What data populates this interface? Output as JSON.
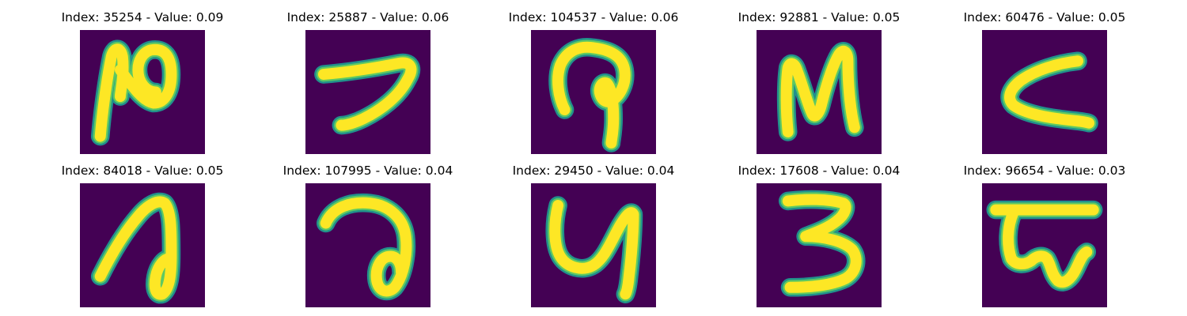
{
  "colors": {
    "background": "#440154",
    "stroke_outer": "#21918c",
    "stroke_mid": "#5ec962",
    "stroke_core": "#fde725"
  },
  "panels": [
    {
      "title": "Index: 35254 - Value: 0.09"
    },
    {
      "title": "Index: 25887 - Value: 0.06"
    },
    {
      "title": "Index: 104537 - Value: 0.06"
    },
    {
      "title": "Index: 92881 - Value: 0.05"
    },
    {
      "title": "Index: 60476 - Value: 0.05"
    },
    {
      "title": "Index: 84018 - Value: 0.05"
    },
    {
      "title": "Index: 107995 - Value: 0.04"
    },
    {
      "title": "Index: 29450 - Value: 0.04"
    },
    {
      "title": "Index: 17608 - Value: 0.04"
    },
    {
      "title": "Index: 96654 - Value: 0.03"
    }
  ]
}
